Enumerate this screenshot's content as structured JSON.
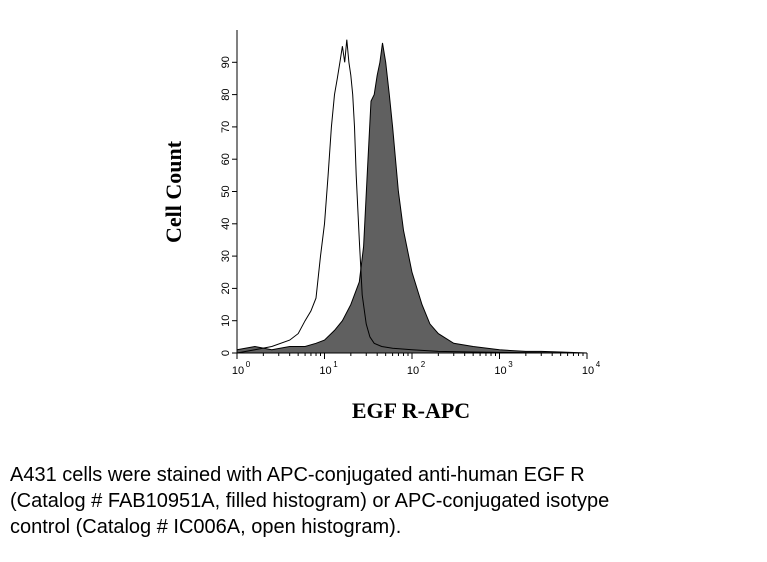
{
  "chart_data": {
    "type": "area",
    "xlabel": "EGF R-APC",
    "ylabel": "Cell Count",
    "x_scale": "log",
    "xlim": [
      1,
      10000
    ],
    "ylim": [
      0,
      100
    ],
    "x_ticks": [
      {
        "base": "10",
        "exp": "0",
        "value": 1
      },
      {
        "base": "10",
        "exp": "1",
        "value": 10
      },
      {
        "base": "10",
        "exp": "2",
        "value": 100
      },
      {
        "base": "10",
        "exp": "3",
        "value": 1000
      },
      {
        "base": "10",
        "exp": "4",
        "value": 10000
      }
    ],
    "y_ticks": [
      "0",
      "10",
      "20",
      "30",
      "40",
      "50",
      "60",
      "70",
      "80",
      "90"
    ],
    "grid": false,
    "series": [
      {
        "style": "filled",
        "fill": "#606060",
        "x": [
          1,
          1.6,
          2.5,
          4,
          6,
          8,
          10,
          13,
          16,
          20,
          25,
          28,
          31,
          34,
          37,
          40,
          43,
          46,
          50,
          55,
          60,
          70,
          80,
          100,
          130,
          160,
          200,
          300,
          500,
          1000,
          2000,
          3000,
          5000,
          10000
        ],
        "y": [
          1,
          2,
          1,
          2,
          2,
          3,
          4,
          7,
          10,
          15,
          22,
          33,
          57,
          78,
          80,
          86,
          90,
          96,
          90,
          80,
          70,
          50,
          38,
          25,
          15,
          9,
          6,
          3,
          2,
          1,
          0.5,
          0.5,
          0.3,
          0
        ]
      },
      {
        "style": "open",
        "stroke": "#000000",
        "x": [
          1,
          1.6,
          2.5,
          4,
          5,
          6,
          7,
          8,
          9,
          10,
          11,
          12,
          13,
          14,
          15,
          16,
          17,
          18,
          19,
          20,
          21,
          22,
          23,
          25,
          27,
          30,
          33,
          37,
          45,
          60,
          100,
          200,
          500,
          1000,
          10000
        ],
        "y": [
          0,
          1,
          2,
          4,
          6,
          10,
          13,
          17,
          30,
          40,
          55,
          70,
          80,
          85,
          90,
          95,
          90,
          97,
          90,
          86,
          80,
          70,
          55,
          35,
          18,
          9,
          5,
          3,
          2,
          1.5,
          1,
          0.5,
          0.3,
          0.2,
          0
        ]
      }
    ]
  },
  "caption": {
    "line1": "A431 cells were stained with APC-conjugated anti-human EGF R",
    "line2": "(Catalog # FAB10951A, filled histogram) or APC-conjugated isotype",
    "line3": "control (Catalog # IC006A, open histogram)."
  }
}
